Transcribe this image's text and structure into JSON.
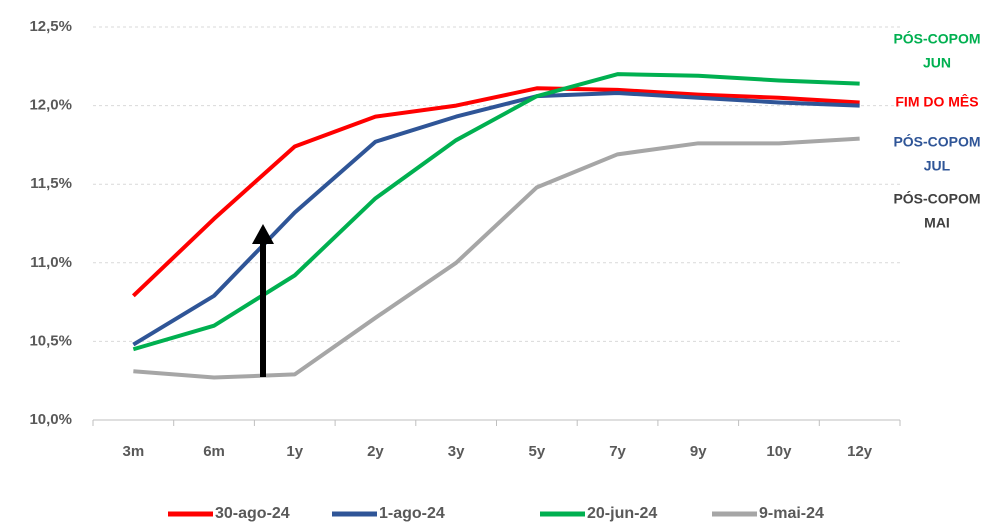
{
  "chart_data": {
    "type": "line",
    "categories": [
      "3m",
      "6m",
      "1y",
      "2y",
      "3y",
      "5y",
      "7y",
      "9y",
      "10y",
      "12y"
    ],
    "series": [
      {
        "name": "30-ago-24",
        "color": "#ff0000",
        "values": [
          10.79,
          11.28,
          11.74,
          11.93,
          12.0,
          12.11,
          12.1,
          12.07,
          12.05,
          12.02
        ]
      },
      {
        "name": "1-ago-24",
        "color": "#2f5597",
        "values": [
          10.48,
          10.79,
          11.32,
          11.77,
          11.93,
          12.06,
          12.08,
          12.05,
          12.02,
          12.0
        ]
      },
      {
        "name": "20-jun-24",
        "color": "#00b050",
        "values": [
          10.45,
          10.6,
          10.92,
          11.41,
          11.78,
          12.06,
          12.2,
          12.19,
          12.16,
          12.14
        ]
      },
      {
        "name": "9-mai-24",
        "color": "#a6a6a6",
        "values": [
          10.31,
          10.27,
          10.29,
          10.65,
          11.0,
          11.48,
          11.69,
          11.76,
          11.76,
          11.79
        ]
      }
    ],
    "ylim": [
      10.0,
      12.5
    ],
    "yticks": [
      {
        "value": 10.0,
        "label": "10,0%"
      },
      {
        "value": 10.5,
        "label": "10,5%"
      },
      {
        "value": 11.0,
        "label": "11,0%"
      },
      {
        "value": 11.5,
        "label": "11,5%"
      },
      {
        "value": 12.0,
        "label": "12,0%"
      },
      {
        "value": 12.5,
        "label": "12,5%"
      }
    ],
    "grid": true,
    "legend": "bottom",
    "annotations": [
      {
        "lines": [
          "PÓS-COPOM",
          "JUN"
        ],
        "color": "#00b050"
      },
      {
        "lines": [
          "FIM DO MÊS"
        ],
        "color": "#ff0000"
      },
      {
        "lines": [
          "PÓS-COPOM",
          "JUL"
        ],
        "color": "#2f5597"
      },
      {
        "lines": [
          "PÓS-COPOM",
          "MAI"
        ],
        "color": "#404040"
      }
    ]
  }
}
